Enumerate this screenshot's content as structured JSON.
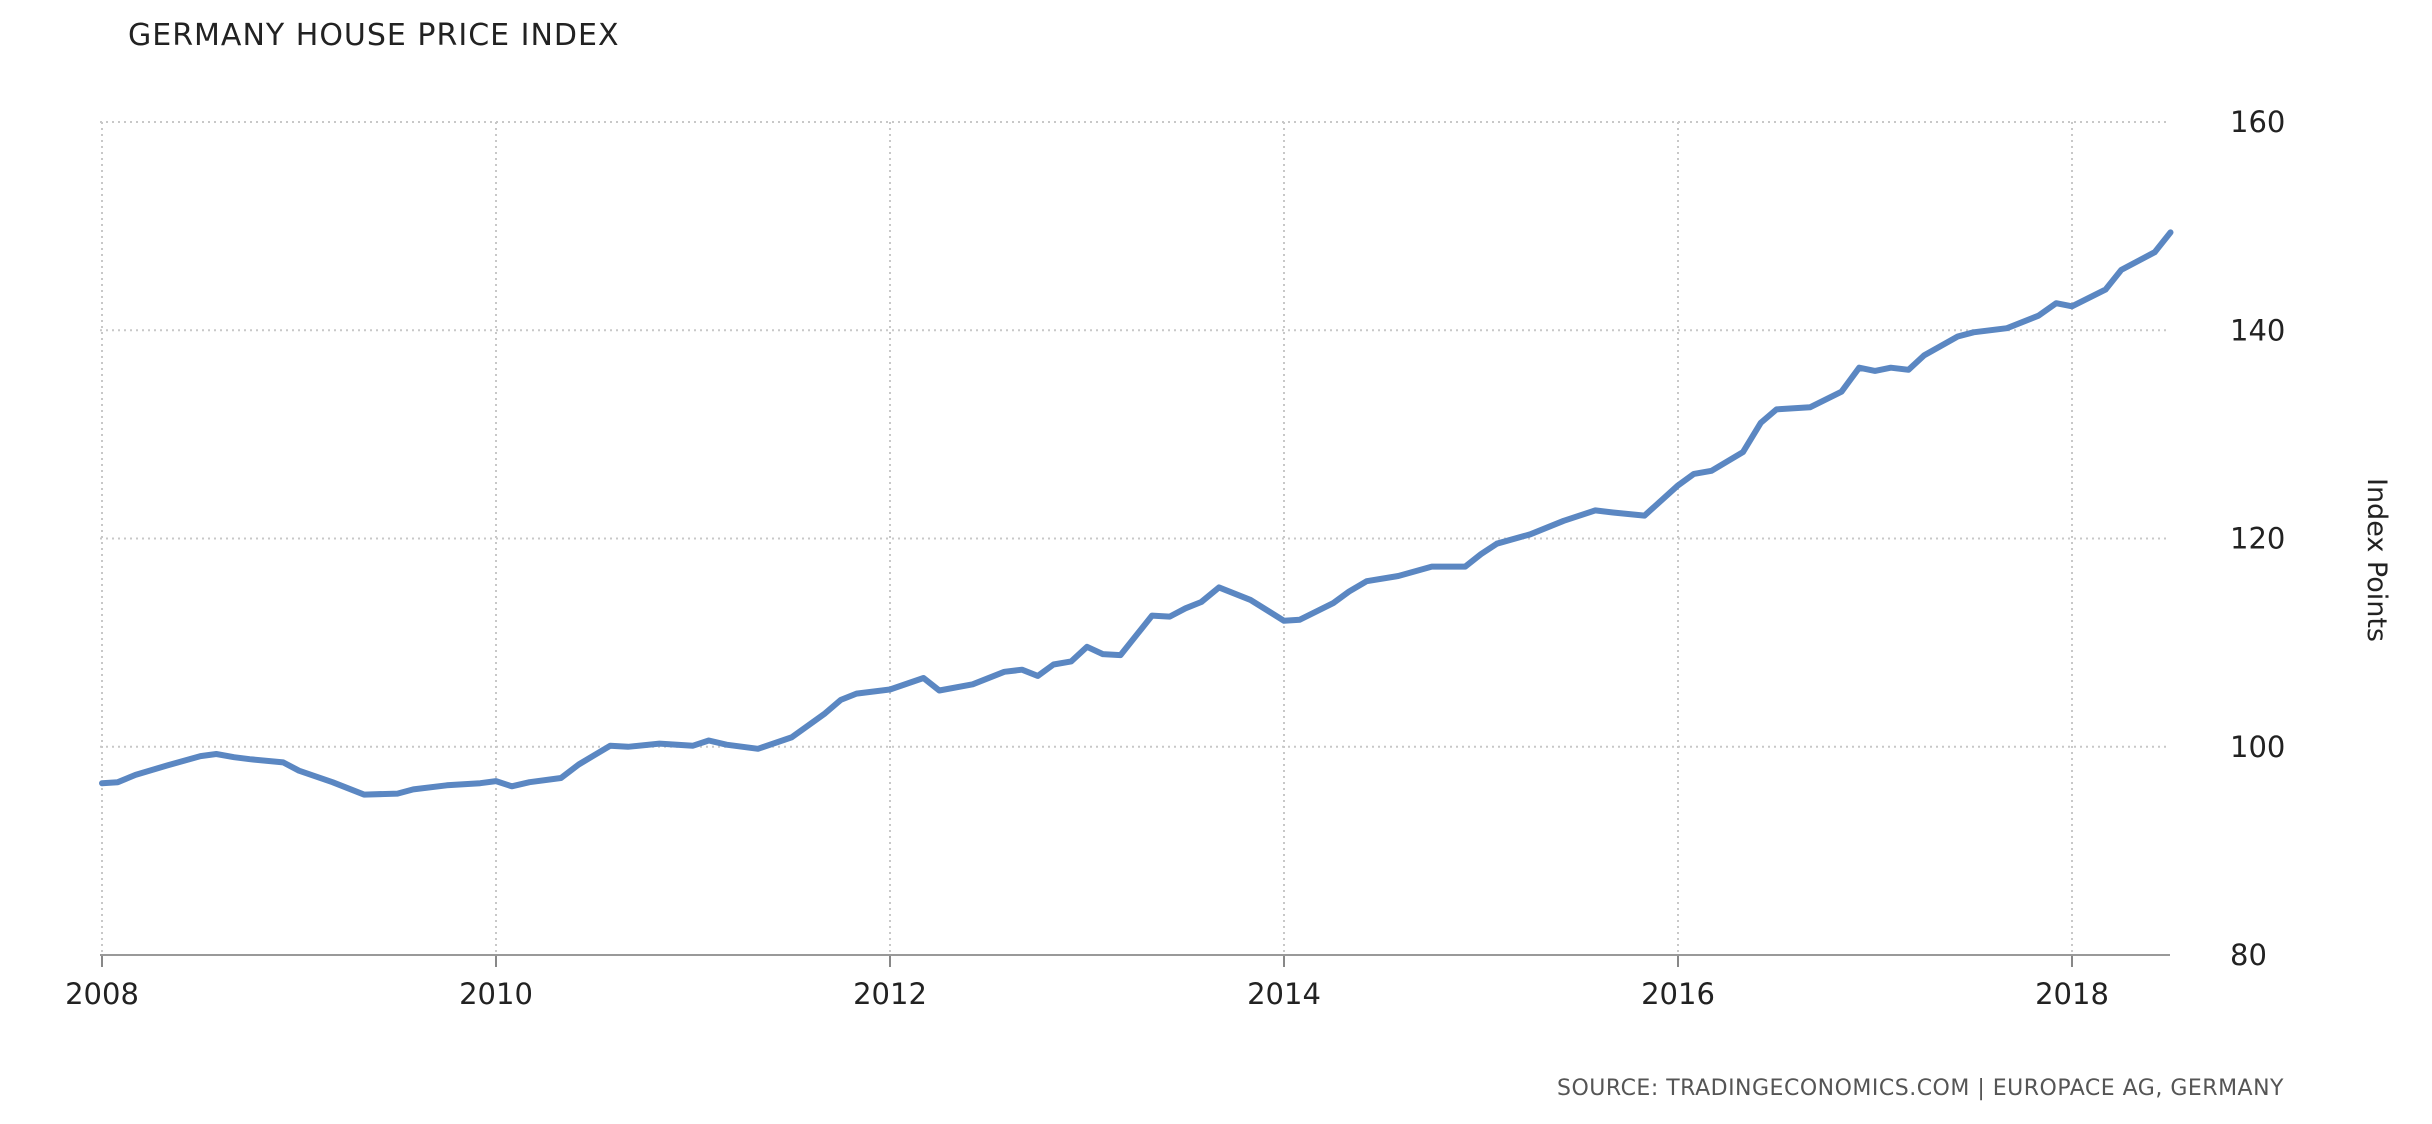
{
  "chart_data": {
    "type": "line",
    "title": "GERMANY HOUSE PRICE INDEX",
    "ylabel": "Index Points",
    "xlabel": "",
    "xlim": [
      2008,
      2018.55
    ],
    "ylim": [
      80,
      160
    ],
    "grid": true,
    "grid_style": "dotted",
    "y_axis_side": "right",
    "x_ticks": [
      "2008",
      "2010",
      "2012",
      "2014",
      "2016",
      "2018"
    ],
    "y_ticks": [
      "80",
      "100",
      "120",
      "140",
      "160"
    ],
    "line_color": "#5b87c2",
    "series": [
      {
        "name": "",
        "x": [
          2008.0,
          2008.08,
          2008.17,
          2008.33,
          2008.5,
          2008.58,
          2008.67,
          2008.75,
          2008.92,
          2009.0,
          2009.17,
          2009.33,
          2009.5,
          2009.58,
          2009.75,
          2009.92,
          2010.0,
          2010.08,
          2010.17,
          2010.33,
          2010.42,
          2010.5,
          2010.58,
          2010.67,
          2010.83,
          2011.0,
          2011.08,
          2011.17,
          2011.33,
          2011.5,
          2011.67,
          2011.75,
          2011.83,
          2012.0,
          2012.17,
          2012.25,
          2012.42,
          2012.58,
          2012.67,
          2012.75,
          2012.83,
          2012.92,
          2013.0,
          2013.08,
          2013.17,
          2013.33,
          2013.42,
          2013.5,
          2013.58,
          2013.67,
          2013.83,
          2014.0,
          2014.08,
          2014.25,
          2014.33,
          2014.42,
          2014.58,
          2014.75,
          2014.92,
          2015.0,
          2015.08,
          2015.25,
          2015.42,
          2015.58,
          2015.67,
          2015.83,
          2016.0,
          2016.08,
          2016.17,
          2016.33,
          2016.42,
          2016.5,
          2016.67,
          2016.83,
          2016.92,
          2017.0,
          2017.08,
          2017.17,
          2017.25,
          2017.42,
          2017.5,
          2017.67,
          2017.83,
          2017.92,
          2018.0,
          2018.17,
          2018.25,
          2018.42,
          2018.5
        ],
        "values": [
          96.5,
          96.6,
          97.3,
          98.2,
          99.1,
          99.3,
          99.0,
          98.8,
          98.5,
          97.7,
          96.6,
          95.4,
          95.5,
          95.9,
          96.3,
          96.5,
          96.7,
          96.2,
          96.6,
          97.0,
          98.3,
          99.2,
          100.1,
          100.0,
          100.3,
          100.1,
          100.6,
          100.2,
          99.8,
          100.9,
          103.2,
          104.5,
          105.1,
          105.5,
          106.6,
          105.4,
          106.0,
          107.2,
          107.4,
          106.8,
          107.9,
          108.2,
          109.6,
          108.9,
          108.8,
          112.6,
          112.5,
          113.3,
          113.9,
          115.3,
          114.1,
          112.1,
          112.2,
          113.8,
          114.9,
          115.9,
          116.4,
          117.3,
          117.3,
          118.5,
          119.5,
          120.4,
          121.7,
          122.7,
          122.5,
          122.2,
          125.1,
          126.2,
          126.5,
          128.3,
          131.1,
          132.4,
          132.6,
          134.1,
          136.4,
          136.1,
          136.4,
          136.2,
          137.6,
          139.4,
          139.8,
          140.2,
          141.4,
          142.6,
          142.3,
          143.9,
          145.8,
          147.5,
          149.4
        ]
      }
    ]
  },
  "source": "SOURCE: TRADINGECONOMICS.COM | EUROPACE AG, GERMANY"
}
